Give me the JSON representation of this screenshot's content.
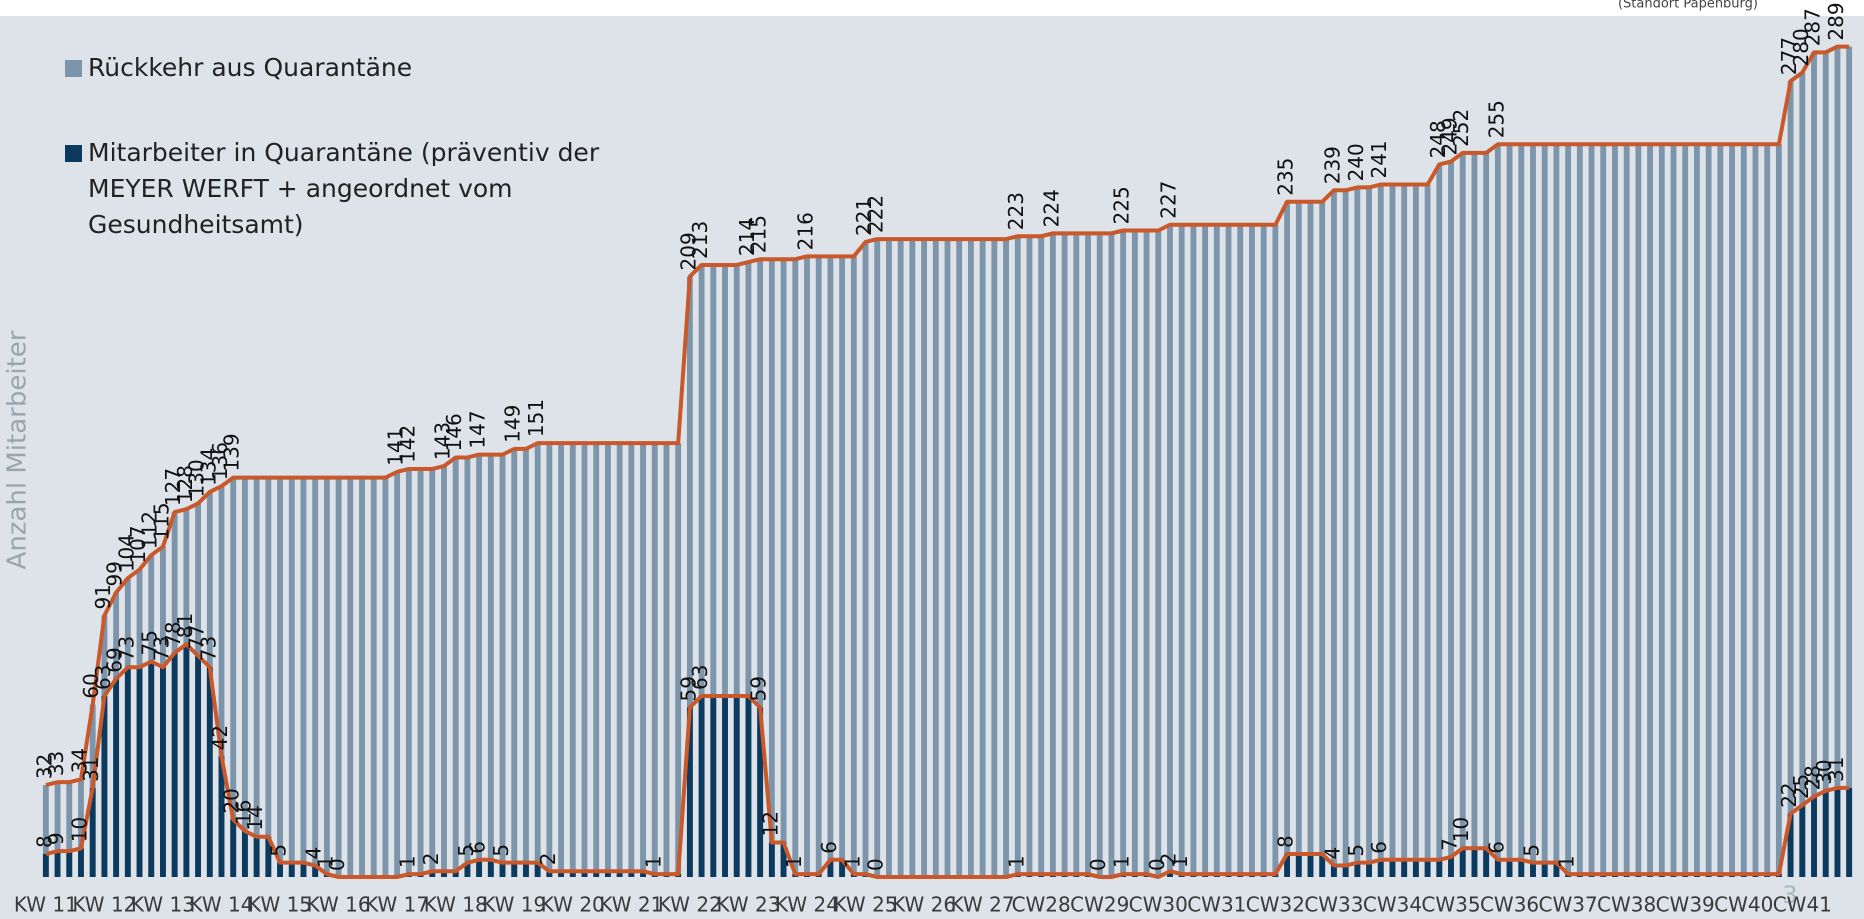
{
  "chart_data": {
    "type": "bar",
    "y_label": "Anzahl Mitarbeiter",
    "note": "(Standort Papenburg)",
    "page_number": "3",
    "legend_position": "top-left",
    "ylim": [
      0,
      300
    ],
    "grid": false,
    "categories": [
      "KW 11",
      null,
      null,
      null,
      null,
      "KW 12",
      null,
      null,
      null,
      null,
      "KW 13",
      null,
      null,
      null,
      null,
      "KW 14",
      null,
      null,
      null,
      null,
      "KW 15",
      null,
      null,
      null,
      null,
      "KW 16",
      null,
      null,
      null,
      null,
      "KW 17",
      null,
      null,
      null,
      null,
      "KW 18",
      null,
      null,
      null,
      null,
      "KW 19",
      null,
      null,
      null,
      null,
      "KW 20",
      null,
      null,
      null,
      null,
      "KW 21",
      null,
      null,
      null,
      null,
      "KW 22",
      null,
      null,
      null,
      null,
      "KW 23",
      null,
      null,
      null,
      null,
      "KW 24",
      null,
      null,
      null,
      null,
      "KW 25",
      null,
      null,
      null,
      null,
      "KW 26",
      null,
      null,
      null,
      null,
      "KW 27",
      null,
      null,
      null,
      null,
      "CW28",
      null,
      null,
      null,
      null,
      "CW29",
      null,
      null,
      null,
      null,
      "CW30",
      null,
      null,
      null,
      null,
      "CW31",
      null,
      null,
      null,
      null,
      "CW32",
      null,
      null,
      null,
      null,
      "CW33",
      null,
      null,
      null,
      null,
      "CW34",
      null,
      null,
      null,
      null,
      "CW35",
      null,
      null,
      null,
      null,
      "CW36",
      null,
      null,
      null,
      null,
      "CW37",
      null,
      null,
      null,
      null,
      "CW38",
      null,
      null,
      null,
      null,
      "CW39",
      null,
      null,
      null,
      null,
      "CW40",
      null,
      null,
      null,
      null,
      "CW41",
      null,
      null,
      null,
      null
    ],
    "series": [
      {
        "name": "Rückkehr aus Quarantäne",
        "color": "#7d95aa",
        "line_color": "#c9582a",
        "values": [
          32,
          33,
          33,
          34,
          60,
          91,
          99,
          104,
          107,
          112,
          115,
          127,
          128,
          130,
          134,
          136,
          139,
          139,
          139,
          139,
          139,
          139,
          139,
          139,
          139,
          139,
          139,
          139,
          139,
          139,
          141,
          142,
          142,
          142,
          143,
          146,
          146,
          147,
          147,
          147,
          149,
          149,
          151,
          151,
          151,
          151,
          151,
          151,
          151,
          151,
          151,
          151,
          151,
          151,
          151,
          209,
          213,
          213,
          213,
          213,
          214,
          215,
          215,
          215,
          215,
          216,
          216,
          216,
          216,
          216,
          221,
          222,
          222,
          222,
          222,
          222,
          222,
          222,
          222,
          222,
          222,
          222,
          222,
          223,
          223,
          223,
          224,
          224,
          224,
          224,
          224,
          224,
          225,
          225,
          225,
          225,
          227,
          227,
          227,
          227,
          227,
          227,
          227,
          227,
          227,
          227,
          235,
          235,
          235,
          235,
          239,
          239,
          240,
          240,
          241,
          241,
          241,
          241,
          241,
          248,
          249,
          252,
          252,
          252,
          255,
          255,
          255,
          255,
          255,
          255,
          255,
          255,
          255,
          255,
          255,
          255,
          255,
          255,
          255,
          255,
          255,
          255,
          255,
          255,
          255,
          255,
          255,
          255,
          255,
          277,
          280,
          287,
          287,
          289,
          289
        ]
      },
      {
        "name": "Mitarbeiter in Quarantäne (präventiv der MEYER WERFT + angeordnet vom Gesundheitsamt)",
        "color": "#0b3a5e",
        "line_color": "#c9582a",
        "values": [
          8,
          9,
          9,
          10,
          31,
          63,
          69,
          73,
          73,
          75,
          73,
          78,
          81,
          77,
          73,
          42,
          20,
          16,
          14,
          14,
          5,
          5,
          5,
          4,
          1,
          0,
          0,
          0,
          0,
          0,
          0,
          1,
          1,
          2,
          2,
          2,
          5,
          6,
          6,
          5,
          5,
          5,
          5,
          2,
          2,
          2,
          2,
          2,
          2,
          2,
          2,
          2,
          1,
          1,
          1,
          59,
          63,
          63,
          63,
          63,
          63,
          59,
          12,
          12,
          1,
          1,
          1,
          6,
          6,
          1,
          1,
          0,
          0,
          0,
          0,
          0,
          0,
          0,
          0,
          0,
          0,
          0,
          0,
          1,
          1,
          1,
          1,
          1,
          1,
          1,
          0,
          0,
          1,
          1,
          1,
          0,
          2,
          1,
          1,
          1,
          1,
          1,
          1,
          1,
          1,
          1,
          8,
          8,
          8,
          8,
          4,
          4,
          5,
          5,
          6,
          6,
          6,
          6,
          6,
          6,
          7,
          10,
          10,
          10,
          6,
          6,
          6,
          5,
          5,
          5,
          1,
          1,
          1,
          1,
          1,
          1,
          1,
          1,
          1,
          1,
          1,
          1,
          1,
          1,
          1,
          1,
          1,
          1,
          1,
          22,
          25,
          28,
          30,
          31,
          31
        ]
      }
    ]
  }
}
